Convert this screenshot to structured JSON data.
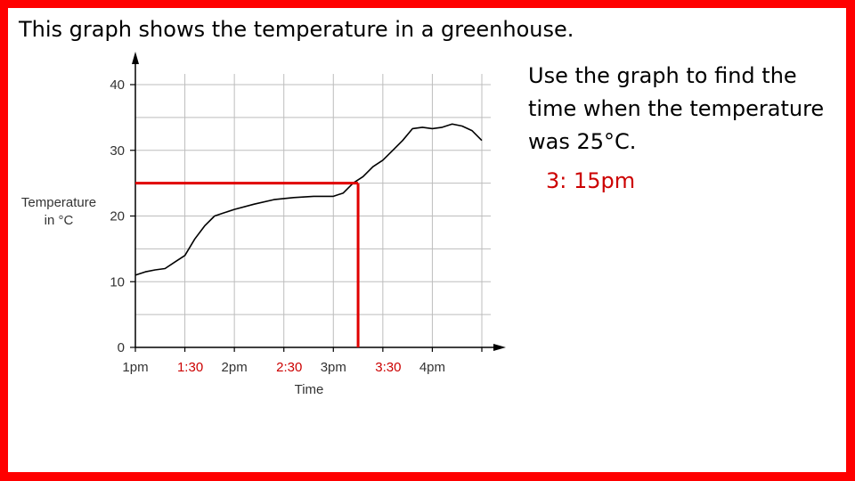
{
  "title": "This graph shows the temperature in a greenhouse.",
  "question": "Use the graph to find the time when the temperature was 25°C.",
  "answer": "3: 15pm",
  "colors": {
    "border": "#ff0000",
    "annotation": "#e00000",
    "answer_text": "#cc0000",
    "curve": "#000000",
    "grid": "#bdbdbd"
  },
  "chart_data": {
    "type": "line",
    "xlabel": "Time",
    "ylabel_lines": [
      "Temperature",
      "in °C"
    ],
    "x_unit": "hours after 1pm",
    "xlim": [
      0,
      3.5
    ],
    "ylim": [
      0,
      40
    ],
    "y_ticks": [
      0,
      10,
      20,
      30,
      40
    ],
    "x_tick_labels": [
      "1pm",
      "2pm",
      "3pm",
      "4pm"
    ],
    "x_extra_labels": [
      "1:30",
      "2:30",
      "3:30"
    ],
    "grid": true,
    "series": [
      {
        "x": [
          0,
          0.1,
          0.2,
          0.3,
          0.4,
          0.5,
          0.6,
          0.7,
          0.8,
          0.9,
          1.0,
          1.2,
          1.4,
          1.6,
          1.8,
          2.0,
          2.1,
          2.2,
          2.3,
          2.4,
          2.5,
          2.6,
          2.7,
          2.8,
          2.9,
          3.0,
          3.1,
          3.2,
          3.3,
          3.4,
          3.5
        ],
        "y": [
          11,
          11.5,
          11.8,
          12,
          13,
          14,
          16.5,
          18.5,
          20,
          20.5,
          21,
          21.8,
          22.5,
          22.8,
          23,
          23,
          23.5,
          25,
          26,
          27.5,
          28.5,
          30,
          31.5,
          33.3,
          33.5,
          33.3,
          33.5,
          34,
          33.7,
          33,
          31.5
        ]
      }
    ],
    "annotation": {
      "y_value": 25,
      "x_value": 2.25
    }
  }
}
